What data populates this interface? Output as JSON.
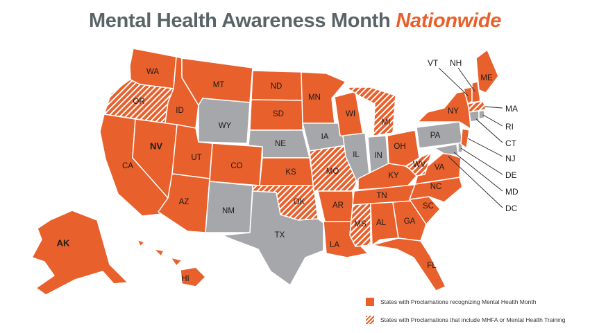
{
  "title": {
    "main": "Mental Health Awareness Month",
    "accent": "Nationwide"
  },
  "colors": {
    "solid": "#e8602c",
    "none": "#a5a7aa",
    "hatch_stripe": "#ffffff"
  },
  "states": {
    "WA": "WA",
    "OR": "OR",
    "CA": "CA",
    "ID": "ID",
    "NV": "NV",
    "AZ": "AZ",
    "UT": "UT",
    "MT": "MT",
    "WY": "WY",
    "CO": "CO",
    "NM": "NM",
    "ND": "ND",
    "SD": "SD",
    "NE": "NE",
    "KS": "KS",
    "OK": "OK",
    "TX": "TX",
    "MN": "MN",
    "IA": "IA",
    "MO": "MO",
    "AR": "AR",
    "LA": "LA",
    "WI": "WI",
    "IL": "IL",
    "MS": "MS",
    "MI": "MI",
    "IN": "IN",
    "KY": "KY",
    "TN": "TN",
    "AL": "AL",
    "GA": "GA",
    "FL": "FL",
    "OH": "OH",
    "WV": "WV",
    "VA": "VA",
    "NC": "NC",
    "SC": "SC",
    "PA": "PA",
    "NY": "NY",
    "ME": "ME",
    "AK": "AK",
    "HI": "HI"
  },
  "callouts": {
    "VT": "VT",
    "NH": "NH",
    "MA": "MA",
    "RI": "RI",
    "CT": "CT",
    "NJ": "NJ",
    "DE": "DE",
    "MD": "MD",
    "DC": "DC"
  },
  "legend": {
    "solid_label": "States with Proclamations recognizing Mental Health Month",
    "hatch_label": "States with Proclamations that include MHFA or Mental Health Training"
  }
}
